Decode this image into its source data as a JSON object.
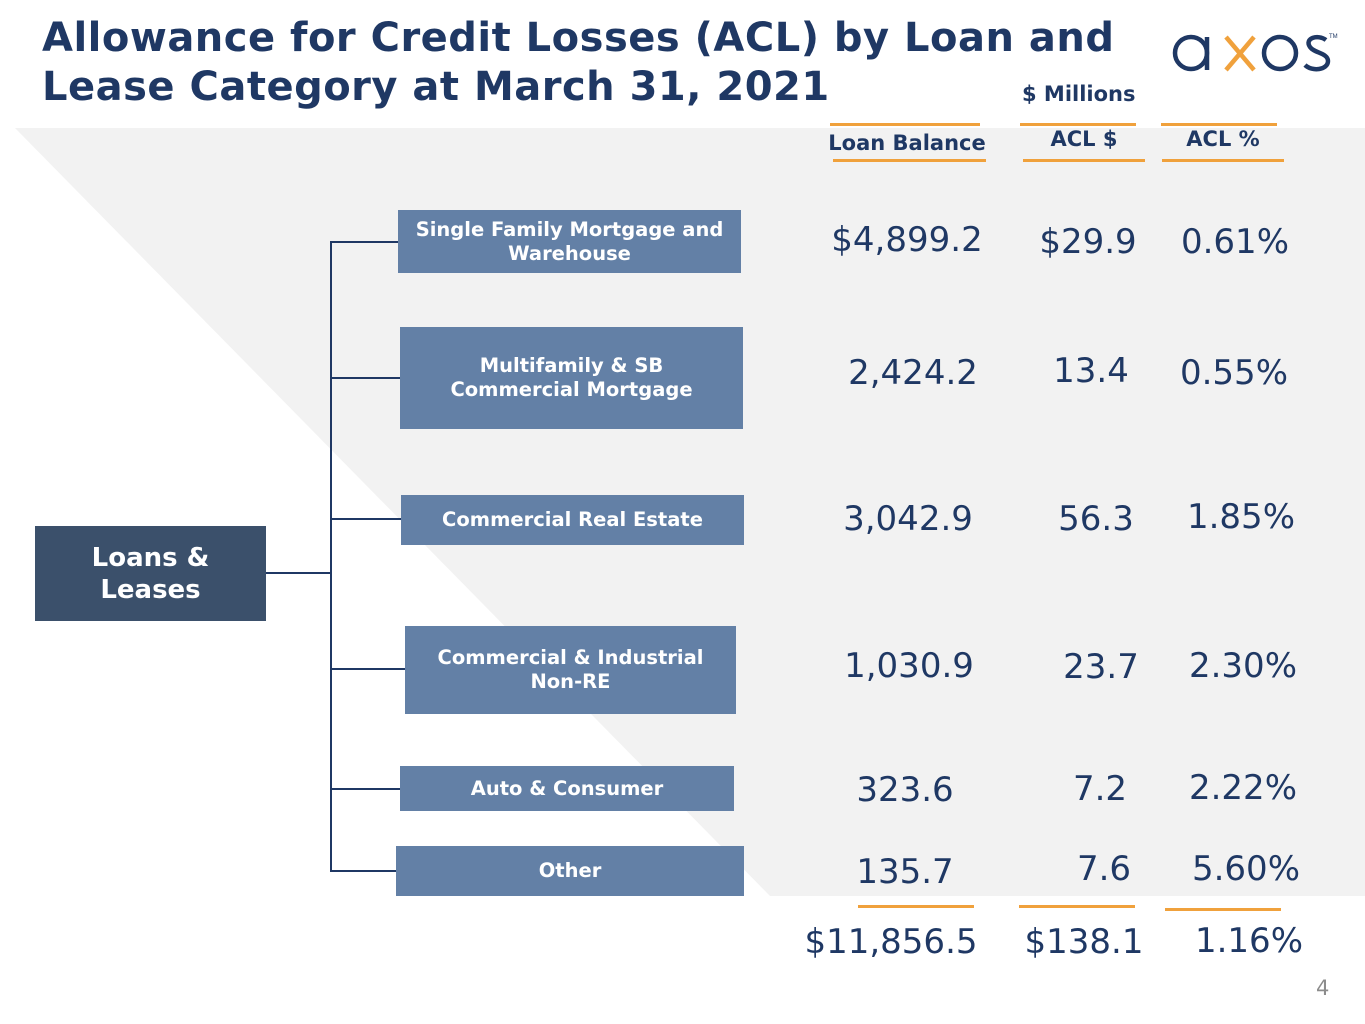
{
  "title": {
    "line1": "Allowance for Credit Losses (ACL) by Loan and",
    "line2": "Lease Category at March 31, 2021"
  },
  "logo": {
    "text": "axos",
    "tm": "TM"
  },
  "units_label": "$ Millions",
  "columns": {
    "balance": "Loan Balance",
    "acl": "ACL $",
    "pct": "ACL %"
  },
  "root_label_line1": "Loans &",
  "root_label_line2": "Leases",
  "rows": [
    {
      "label_line1": "Single Family Mortgage and",
      "label_line2": "Warehouse",
      "balance": "$4,899.2",
      "acl": "$29.9",
      "pct": "0.61%"
    },
    {
      "label_line1": "Multifamily &  SB",
      "label_line2": "Commercial Mortgage",
      "balance": "2,424.2",
      "acl": "13.4",
      "pct": "0.55%"
    },
    {
      "label_line1": "Commercial Real Estate",
      "label_line2": "",
      "balance": "3,042.9",
      "acl": "56.3",
      "pct": "1.85%"
    },
    {
      "label_line1": "Commercial & Industrial",
      "label_line2": "Non-RE",
      "balance": "1,030.9",
      "acl": "23.7",
      "pct": "2.30%"
    },
    {
      "label_line1": "Auto & Consumer",
      "label_line2": "",
      "balance": "323.6",
      "acl": "7.2",
      "pct": "2.22%"
    },
    {
      "label_line1": "Other",
      "label_line2": "",
      "balance": "135.7",
      "acl": "7.6",
      "pct": "5.60%"
    }
  ],
  "totals": {
    "balance": "$11,856.5",
    "acl": "$138.1",
    "pct": "1.16%"
  },
  "page_number": "4",
  "colors": {
    "navy": "#1f3864",
    "accent": "#f0a13c",
    "box": "#6380a6",
    "root": "#3b506b",
    "band": "#f2f2f2"
  }
}
